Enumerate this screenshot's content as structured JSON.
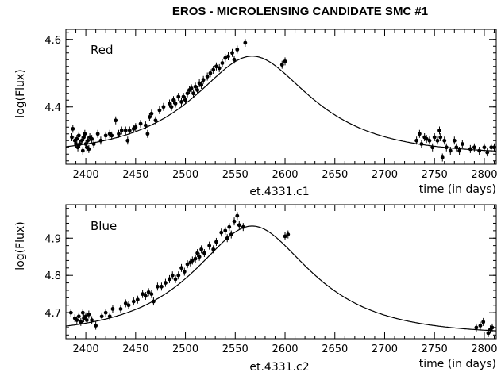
{
  "figure": {
    "title": "EROS  -  MICROLENSING CANDIDATE SMC #1"
  },
  "chart_data": [
    {
      "type": "scatter",
      "panel_label": "Red",
      "title": "",
      "xlabel": "time (in days)",
      "ylabel": "log(Flux)",
      "caption": "et.4331.c1",
      "xlim": [
        2380,
        2812
      ],
      "ylim": [
        4.23,
        4.63
      ],
      "xticks": [
        2400,
        2450,
        2500,
        2550,
        2600,
        2650,
        2700,
        2750,
        2800
      ],
      "xtick_labels": [
        "2400",
        "2450",
        "2500",
        "2550",
        "2600",
        "2650",
        "2700",
        "2750",
        "2800"
      ],
      "yticks": [
        4.4,
        4.6
      ],
      "ytick_labels": [
        "4.4",
        "4.6"
      ],
      "model": {
        "t0": 2567,
        "u0": 0.57,
        "tE": 95,
        "log_base": 4.258
      },
      "series": [
        {
          "points": [
            [
              2386,
              4.31
            ],
            [
              2387,
              4.335
            ],
            [
              2389,
              4.3
            ],
            [
              2390,
              4.29
            ],
            [
              2391,
              4.305
            ],
            [
              2392,
              4.28
            ],
            [
              2393,
              4.315
            ],
            [
              2394,
              4.29
            ],
            [
              2396,
              4.3
            ],
            [
              2397,
              4.27
            ],
            [
              2398,
              4.31
            ],
            [
              2399,
              4.32
            ],
            [
              2400,
              4.29
            ],
            [
              2401,
              4.28
            ],
            [
              2402,
              4.3
            ],
            [
              2403,
              4.275
            ],
            [
              2404,
              4.31
            ],
            [
              2406,
              4.305
            ],
            [
              2408,
              4.29
            ],
            [
              2412,
              4.32
            ],
            [
              2415,
              4.3
            ],
            [
              2420,
              4.315
            ],
            [
              2424,
              4.32
            ],
            [
              2426,
              4.315
            ],
            [
              2430,
              4.36
            ],
            [
              2433,
              4.32
            ],
            [
              2436,
              4.33
            ],
            [
              2440,
              4.33
            ],
            [
              2442,
              4.3
            ],
            [
              2444,
              4.33
            ],
            [
              2448,
              4.335
            ],
            [
              2450,
              4.34
            ],
            [
              2455,
              4.35
            ],
            [
              2460,
              4.345
            ],
            [
              2462,
              4.32
            ],
            [
              2464,
              4.37
            ],
            [
              2466,
              4.38
            ],
            [
              2470,
              4.36
            ],
            [
              2474,
              4.39
            ],
            [
              2478,
              4.4
            ],
            [
              2484,
              4.41
            ],
            [
              2486,
              4.4
            ],
            [
              2488,
              4.42
            ],
            [
              2490,
              4.41
            ],
            [
              2493,
              4.43
            ],
            [
              2496,
              4.415
            ],
            [
              2498,
              4.43
            ],
            [
              2500,
              4.42
            ],
            [
              2502,
              4.44
            ],
            [
              2504,
              4.45
            ],
            [
              2506,
              4.455
            ],
            [
              2508,
              4.44
            ],
            [
              2510,
              4.46
            ],
            [
              2512,
              4.45
            ],
            [
              2514,
              4.47
            ],
            [
              2516,
              4.465
            ],
            [
              2518,
              4.48
            ],
            [
              2522,
              4.49
            ],
            [
              2525,
              4.5
            ],
            [
              2528,
              4.51
            ],
            [
              2531,
              4.52
            ],
            [
              2534,
              4.515
            ],
            [
              2537,
              4.53
            ],
            [
              2540,
              4.545
            ],
            [
              2543,
              4.55
            ],
            [
              2547,
              4.56
            ],
            [
              2549,
              4.54
            ],
            [
              2552,
              4.57
            ],
            [
              2560,
              4.59
            ],
            [
              2597,
              4.525
            ],
            [
              2600,
              4.535
            ],
            [
              2732,
              4.3
            ],
            [
              2735,
              4.32
            ],
            [
              2737,
              4.29
            ],
            [
              2740,
              4.31
            ],
            [
              2742,
              4.305
            ],
            [
              2745,
              4.3
            ],
            [
              2748,
              4.28
            ],
            [
              2750,
              4.31
            ],
            [
              2753,
              4.3
            ],
            [
              2755,
              4.33
            ],
            [
              2756,
              4.31
            ],
            [
              2758,
              4.25
            ],
            [
              2760,
              4.3
            ],
            [
              2762,
              4.28
            ],
            [
              2766,
              4.27
            ],
            [
              2770,
              4.3
            ],
            [
              2772,
              4.28
            ],
            [
              2775,
              4.27
            ],
            [
              2778,
              4.29
            ],
            [
              2786,
              4.275
            ],
            [
              2790,
              4.28
            ],
            [
              2795,
              4.27
            ],
            [
              2800,
              4.28
            ],
            [
              2803,
              4.265
            ],
            [
              2807,
              4.28
            ],
            [
              2810,
              4.28
            ]
          ]
        }
      ]
    },
    {
      "type": "scatter",
      "panel_label": "Blue",
      "title": "",
      "xlabel": "time (in days)",
      "ylabel": "log(Flux)",
      "caption": "et.4331.c2",
      "xlim": [
        2380,
        2812
      ],
      "ylim": [
        4.63,
        4.99
      ],
      "xticks": [
        2400,
        2450,
        2500,
        2550,
        2600,
        2650,
        2700,
        2750,
        2800
      ],
      "xtick_labels": [
        "2400",
        "2450",
        "2500",
        "2550",
        "2600",
        "2650",
        "2700",
        "2750",
        "2800"
      ],
      "yticks": [
        4.7,
        4.8,
        4.9
      ],
      "ytick_labels": [
        "4.7",
        "4.8",
        "4.9"
      ],
      "model": {
        "t0": 2567,
        "u0": 0.57,
        "tE": 95,
        "log_base": 4.64
      },
      "series": [
        {
          "points": [
            [
              2385,
              4.7
            ],
            [
              2389,
              4.685
            ],
            [
              2391,
              4.68
            ],
            [
              2393,
              4.69
            ],
            [
              2395,
              4.675
            ],
            [
              2397,
              4.7
            ],
            [
              2398,
              4.685
            ],
            [
              2400,
              4.69
            ],
            [
              2401,
              4.68
            ],
            [
              2403,
              4.695
            ],
            [
              2406,
              4.68
            ],
            [
              2410,
              4.665
            ],
            [
              2416,
              4.69
            ],
            [
              2420,
              4.7
            ],
            [
              2424,
              4.69
            ],
            [
              2427,
              4.71
            ],
            [
              2435,
              4.71
            ],
            [
              2440,
              4.725
            ],
            [
              2443,
              4.72
            ],
            [
              2448,
              4.73
            ],
            [
              2452,
              4.735
            ],
            [
              2457,
              4.75
            ],
            [
              2460,
              4.745
            ],
            [
              2463,
              4.755
            ],
            [
              2466,
              4.75
            ],
            [
              2468,
              4.73
            ],
            [
              2472,
              4.77
            ],
            [
              2476,
              4.77
            ],
            [
              2480,
              4.78
            ],
            [
              2484,
              4.79
            ],
            [
              2487,
              4.8
            ],
            [
              2490,
              4.79
            ],
            [
              2493,
              4.8
            ],
            [
              2496,
              4.82
            ],
            [
              2499,
              4.81
            ],
            [
              2502,
              4.83
            ],
            [
              2505,
              4.835
            ],
            [
              2507,
              4.84
            ],
            [
              2510,
              4.845
            ],
            [
              2512,
              4.86
            ],
            [
              2514,
              4.85
            ],
            [
              2516,
              4.87
            ],
            [
              2519,
              4.86
            ],
            [
              2524,
              4.88
            ],
            [
              2528,
              4.87
            ],
            [
              2531,
              4.89
            ],
            [
              2536,
              4.915
            ],
            [
              2540,
              4.92
            ],
            [
              2542,
              4.9
            ],
            [
              2544,
              4.93
            ],
            [
              2546,
              4.91
            ],
            [
              2549,
              4.945
            ],
            [
              2552,
              4.96
            ],
            [
              2554,
              4.935
            ],
            [
              2558,
              4.93
            ],
            [
              2600,
              4.905
            ],
            [
              2603,
              4.91
            ],
            [
              2792,
              4.66
            ],
            [
              2796,
              4.665
            ],
            [
              2799,
              4.675
            ],
            [
              2804,
              4.645
            ],
            [
              2806,
              4.655
            ],
            [
              2808,
              4.66
            ]
          ]
        }
      ]
    }
  ]
}
